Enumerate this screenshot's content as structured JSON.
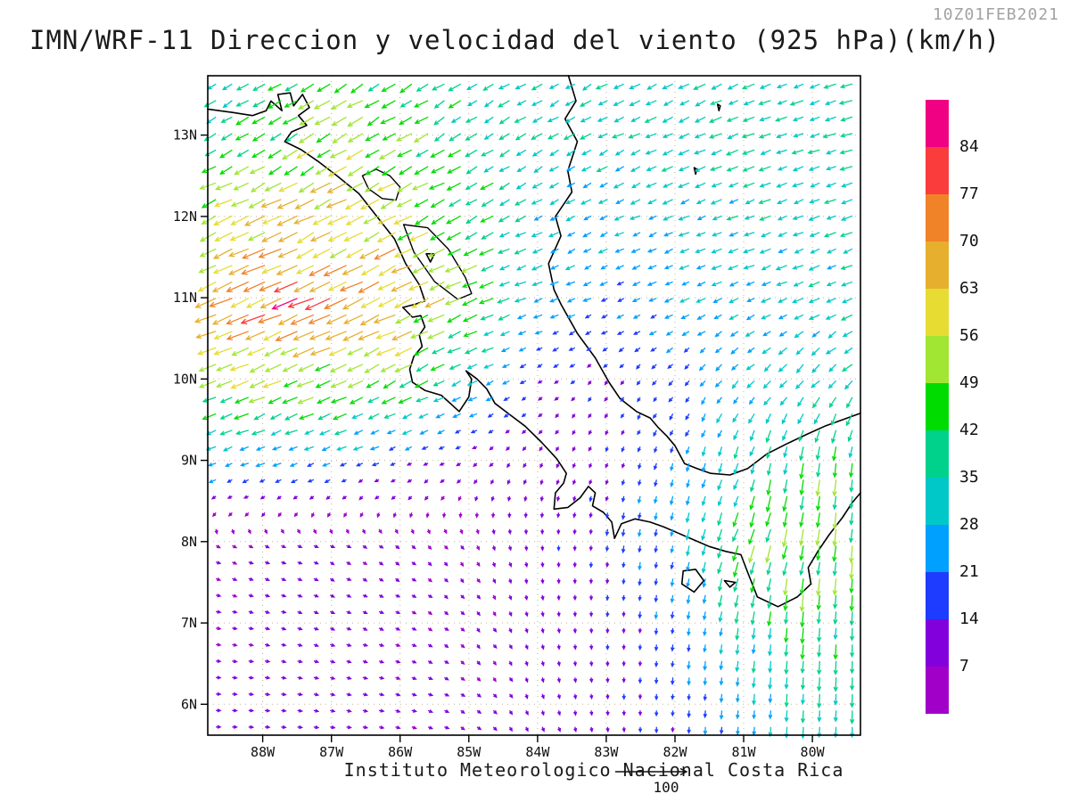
{
  "header": {
    "title": "IMN/WRF-11 Direccion y velocidad del viento (925 hPa)(km/h)",
    "timestamp": "10Z01FEB2021"
  },
  "footer": {
    "credit": "Instituto Meteorologico Nacional Costa Rica",
    "reference_vector_label": "100"
  },
  "axes": {
    "lat_labels": [
      {
        "label": "13N",
        "value": 13
      },
      {
        "label": "12N",
        "value": 12
      },
      {
        "label": "11N",
        "value": 11
      },
      {
        "label": "10N",
        "value": 10
      },
      {
        "label": "9N",
        "value": 9
      },
      {
        "label": "8N",
        "value": 8
      },
      {
        "label": "7N",
        "value": 7
      },
      {
        "label": "6N",
        "value": 6
      }
    ],
    "lon_labels": [
      {
        "label": "88W",
        "value": -88
      },
      {
        "label": "87W",
        "value": -87
      },
      {
        "label": "86W",
        "value": -86
      },
      {
        "label": "85W",
        "value": -85
      },
      {
        "label": "84W",
        "value": -84
      },
      {
        "label": "83W",
        "value": -83
      },
      {
        "label": "82W",
        "value": -82
      },
      {
        "label": "81W",
        "value": -81
      },
      {
        "label": "80W",
        "value": -80
      }
    ]
  },
  "colorbar": {
    "labels": [
      84,
      77,
      70,
      63,
      56,
      49,
      42,
      35,
      28,
      21,
      14,
      7
    ],
    "colors_high_to_low": [
      "#f00082",
      "#fa3c3c",
      "#f08228",
      "#e6af2d",
      "#e6dc32",
      "#a0e632",
      "#00dc00",
      "#00d28c",
      "#00c8c8",
      "#00a0ff",
      "#1e3cff",
      "#8200dc",
      "#a000c8"
    ]
  },
  "chart_data": {
    "type": "vector_field",
    "subtype": "quiver",
    "model": "IMN/WRF-11",
    "variable": "Direccion y velocidad del viento",
    "level": "925 hPa",
    "units": "km/h",
    "valid_time": "10Z01FEB2021",
    "reference_vector": 100,
    "lon_range": [
      -88.8,
      -79.3
    ],
    "lat_range": [
      5.62,
      13.73
    ],
    "speed_bins_kmh": [
      7,
      14,
      21,
      28,
      35,
      42,
      49,
      56,
      63,
      70,
      77,
      84
    ],
    "colors_low_to_high": [
      "#a000c8",
      "#8200dc",
      "#1e3cff",
      "#00a0ff",
      "#00c8c8",
      "#00d28c",
      "#00dc00",
      "#a0e632",
      "#e6dc32",
      "#e6af2d",
      "#f08228",
      "#fa3c3c",
      "#f00082"
    ],
    "grid": {
      "lons": [
        -89,
        -88,
        -87,
        -86,
        -85,
        -84,
        -83,
        -82,
        -81,
        -80,
        -79
      ],
      "lats": [
        14,
        13,
        12,
        11,
        10,
        9,
        8,
        7,
        6,
        5
      ],
      "u": [
        [
          -26,
          -30,
          -38,
          -36,
          -30,
          -28,
          -30,
          -32,
          -33,
          -34,
          -34
        ],
        [
          -32,
          -36,
          -44,
          -40,
          -32,
          -28,
          -29,
          -31,
          -32,
          -33,
          -34
        ],
        [
          -48,
          -54,
          -56,
          -50,
          -38,
          -28,
          -24,
          -27,
          -29,
          -31,
          -32
        ],
        [
          -62,
          -66,
          -68,
          -62,
          -46,
          -26,
          -20,
          -22,
          -25,
          -28,
          -30
        ],
        [
          -44,
          -48,
          -48,
          -42,
          -30,
          -12,
          -8,
          -12,
          -18,
          -22,
          -26
        ],
        [
          -24,
          -24,
          -21,
          -16,
          -8,
          -4,
          -4,
          -6,
          -10,
          -6,
          -3
        ],
        [
          5,
          7,
          7,
          6,
          4,
          1,
          -2,
          -4,
          -16,
          -8,
          -2
        ],
        [
          7,
          8,
          8,
          7,
          5,
          2,
          0,
          -2,
          -5,
          -3,
          0
        ],
        [
          8,
          9,
          9,
          8,
          6,
          3,
          1,
          -1,
          -2,
          -2,
          0
        ],
        [
          8,
          9,
          9,
          8,
          6,
          4,
          2,
          0,
          -1,
          -1,
          0
        ]
      ],
      "v": [
        [
          -16,
          -18,
          -24,
          -22,
          -18,
          -16,
          -16,
          -15,
          -14,
          -12,
          -11
        ],
        [
          -18,
          -22,
          -26,
          -24,
          -20,
          -16,
          -15,
          -14,
          -13,
          -11,
          -10
        ],
        [
          -22,
          -26,
          -28,
          -26,
          -20,
          -14,
          -12,
          -12,
          -11,
          -11,
          -11
        ],
        [
          -26,
          -28,
          -30,
          -28,
          -20,
          -10,
          -9,
          -10,
          -11,
          -13,
          -13
        ],
        [
          -18,
          -20,
          -22,
          -20,
          -14,
          -7,
          -10,
          -14,
          -20,
          -24,
          -22
        ],
        [
          -9,
          -9,
          -9,
          -7,
          -5,
          -8,
          -12,
          -20,
          -34,
          -42,
          -40
        ],
        [
          -3,
          -3,
          -4,
          -5,
          -6,
          -11,
          -16,
          -24,
          -46,
          -48,
          -42
        ],
        [
          -1,
          -2,
          -3,
          -3,
          -5,
          -9,
          -13,
          -19,
          -32,
          -42,
          -38
        ],
        [
          0,
          -1,
          -2,
          -2,
          -4,
          -8,
          -12,
          -17,
          -26,
          -36,
          -34
        ],
        [
          1,
          0,
          -1,
          -2,
          -3,
          -7,
          -10,
          -14,
          -22,
          -32,
          -30
        ]
      ]
    }
  },
  "map": {
    "coastlines": [
      {
        "name": "pacific-central-america",
        "points": [
          [
            -88.8,
            13.32
          ],
          [
            -88.45,
            13.28
          ],
          [
            -88.15,
            13.24
          ],
          [
            -87.95,
            13.3
          ],
          [
            -87.88,
            13.42
          ],
          [
            -87.72,
            13.3
          ],
          [
            -87.78,
            13.5
          ],
          [
            -87.6,
            13.52
          ],
          [
            -87.55,
            13.36
          ],
          [
            -87.42,
            13.5
          ],
          [
            -87.32,
            13.34
          ],
          [
            -87.48,
            13.24
          ],
          [
            -87.36,
            13.12
          ],
          [
            -87.58,
            13.04
          ],
          [
            -87.68,
            12.92
          ],
          [
            -87.44,
            12.82
          ],
          [
            -87.2,
            12.68
          ],
          [
            -86.92,
            12.5
          ],
          [
            -86.6,
            12.28
          ],
          [
            -86.32,
            11.98
          ],
          [
            -86.08,
            11.72
          ],
          [
            -85.92,
            11.42
          ],
          [
            -85.72,
            11.16
          ],
          [
            -85.64,
            10.96
          ],
          [
            -85.78,
            10.92
          ],
          [
            -85.96,
            10.88
          ],
          [
            -85.82,
            10.76
          ],
          [
            -85.7,
            10.78
          ],
          [
            -85.64,
            10.64
          ],
          [
            -85.72,
            10.54
          ],
          [
            -85.68,
            10.4
          ],
          [
            -85.8,
            10.28
          ],
          [
            -85.86,
            10.12
          ],
          [
            -85.82,
            9.96
          ],
          [
            -85.64,
            9.86
          ],
          [
            -85.4,
            9.8
          ],
          [
            -85.14,
            9.6
          ],
          [
            -85.0,
            9.78
          ],
          [
            -84.96,
            10.0
          ],
          [
            -85.04,
            10.1
          ],
          [
            -84.88,
            10.0
          ],
          [
            -84.74,
            9.88
          ],
          [
            -84.62,
            9.7
          ],
          [
            -84.4,
            9.56
          ],
          [
            -84.18,
            9.42
          ],
          [
            -83.94,
            9.22
          ],
          [
            -83.72,
            9.02
          ],
          [
            -83.58,
            8.84
          ],
          [
            -83.62,
            8.72
          ],
          [
            -83.74,
            8.6
          ],
          [
            -83.76,
            8.4
          ],
          [
            -83.56,
            8.42
          ],
          [
            -83.38,
            8.54
          ],
          [
            -83.26,
            8.68
          ],
          [
            -83.16,
            8.6
          ],
          [
            -83.2,
            8.44
          ],
          [
            -83.04,
            8.36
          ],
          [
            -82.92,
            8.24
          ],
          [
            -82.88,
            8.04
          ],
          [
            -82.78,
            8.22
          ],
          [
            -82.58,
            8.28
          ],
          [
            -82.36,
            8.24
          ],
          [
            -82.16,
            8.18
          ],
          [
            -81.94,
            8.1
          ],
          [
            -81.72,
            8.02
          ],
          [
            -81.5,
            7.94
          ],
          [
            -81.26,
            7.88
          ],
          [
            -81.04,
            7.84
          ],
          [
            -80.94,
            7.62
          ],
          [
            -80.8,
            7.32
          ],
          [
            -80.5,
            7.2
          ],
          [
            -80.22,
            7.32
          ],
          [
            -80.02,
            7.48
          ],
          [
            -80.06,
            7.68
          ],
          [
            -79.92,
            7.88
          ],
          [
            -79.76,
            8.08
          ],
          [
            -79.56,
            8.3
          ],
          [
            -79.42,
            8.48
          ],
          [
            -79.3,
            8.6
          ]
        ]
      },
      {
        "name": "caribbean-central-america",
        "points": [
          [
            -83.55,
            13.73
          ],
          [
            -83.44,
            13.42
          ],
          [
            -83.6,
            13.2
          ],
          [
            -83.42,
            12.92
          ],
          [
            -83.56,
            12.56
          ],
          [
            -83.5,
            12.3
          ],
          [
            -83.74,
            12.0
          ],
          [
            -83.66,
            11.76
          ],
          [
            -83.84,
            11.42
          ],
          [
            -83.76,
            11.1
          ],
          [
            -83.66,
            10.92
          ],
          [
            -83.42,
            10.56
          ],
          [
            -83.16,
            10.26
          ],
          [
            -82.96,
            9.96
          ],
          [
            -82.8,
            9.76
          ],
          [
            -82.56,
            9.6
          ],
          [
            -82.36,
            9.52
          ],
          [
            -82.24,
            9.4
          ],
          [
            -82.12,
            9.3
          ],
          [
            -82.0,
            9.18
          ],
          [
            -81.86,
            8.96
          ],
          [
            -81.68,
            8.9
          ],
          [
            -81.48,
            8.84
          ],
          [
            -81.2,
            8.82
          ],
          [
            -80.94,
            8.9
          ],
          [
            -80.66,
            9.08
          ],
          [
            -80.38,
            9.2
          ],
          [
            -80.08,
            9.32
          ],
          [
            -79.82,
            9.42
          ],
          [
            -79.56,
            9.5
          ],
          [
            -79.3,
            9.58
          ]
        ]
      }
    ],
    "lakes": [
      {
        "name": "lake-managua",
        "points": [
          [
            -86.55,
            12.5
          ],
          [
            -86.35,
            12.58
          ],
          [
            -86.15,
            12.5
          ],
          [
            -86.0,
            12.36
          ],
          [
            -86.06,
            12.2
          ],
          [
            -86.26,
            12.22
          ],
          [
            -86.46,
            12.34
          ]
        ]
      },
      {
        "name": "lake-nicaragua",
        "points": [
          [
            -85.95,
            11.9
          ],
          [
            -85.6,
            11.86
          ],
          [
            -85.3,
            11.6
          ],
          [
            -85.05,
            11.25
          ],
          [
            -84.96,
            11.05
          ],
          [
            -85.16,
            10.98
          ],
          [
            -85.5,
            11.2
          ],
          [
            -85.8,
            11.56
          ]
        ]
      }
    ],
    "islands": [
      {
        "name": "ometepe",
        "points": [
          [
            -85.62,
            11.54
          ],
          [
            -85.5,
            11.54
          ],
          [
            -85.56,
            11.44
          ]
        ]
      },
      {
        "name": "coiba",
        "points": [
          [
            -81.88,
            7.64
          ],
          [
            -81.7,
            7.66
          ],
          [
            -81.58,
            7.52
          ],
          [
            -81.72,
            7.38
          ],
          [
            -81.9,
            7.48
          ]
        ]
      },
      {
        "name": "cebaco",
        "points": [
          [
            -81.28,
            7.52
          ],
          [
            -81.12,
            7.5
          ],
          [
            -81.2,
            7.44
          ]
        ]
      },
      {
        "name": "san-andres",
        "points": [
          [
            -81.72,
            12.6
          ],
          [
            -81.68,
            12.58
          ],
          [
            -81.7,
            12.52
          ]
        ]
      },
      {
        "name": "providencia",
        "points": [
          [
            -81.38,
            13.38
          ],
          [
            -81.34,
            13.36
          ],
          [
            -81.36,
            13.3
          ]
        ]
      }
    ]
  }
}
